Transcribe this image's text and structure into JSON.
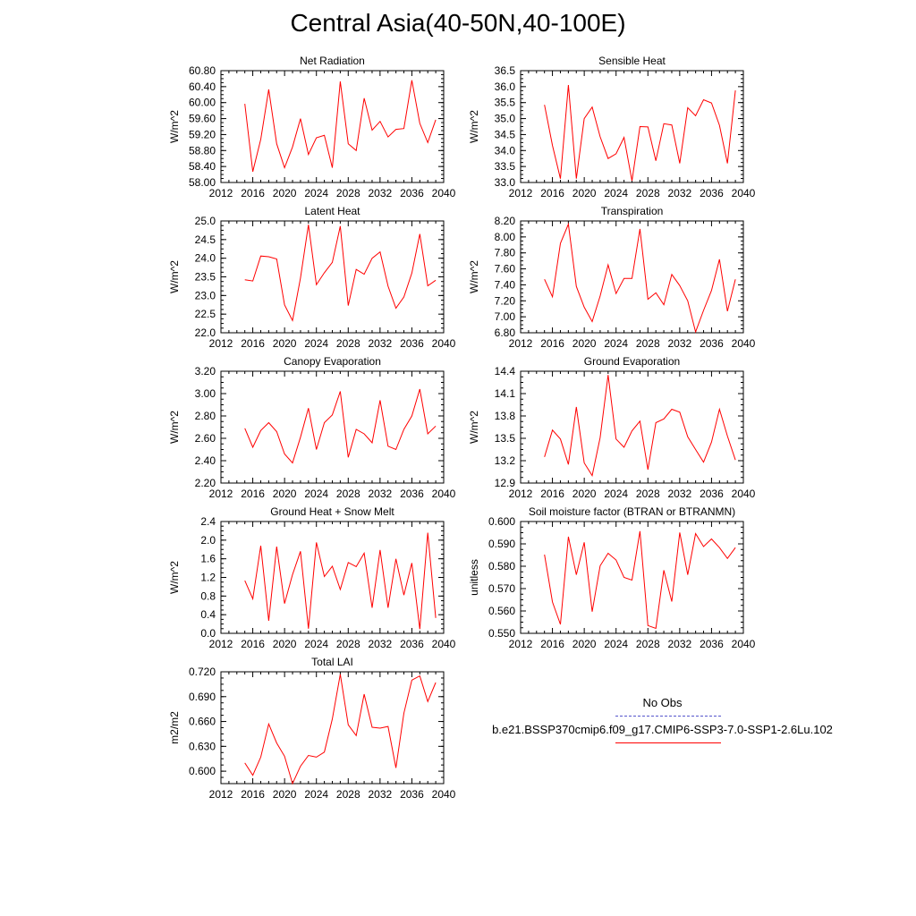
{
  "title": "Central Asia(40-50N,40-100E)",
  "legend": {
    "obs_label": "No Obs",
    "case_label": "b.e21.BSSP370cmip6.f09_g17.CMIP6-SSP3-7.0-SSP1-2.6Lu.102",
    "obs_color": "#5555cc",
    "case_color": "#ff0000"
  },
  "chart_data": [
    {
      "type": "line",
      "title": "Net Radiation",
      "ylabel": "W/m^2",
      "xlim": [
        2012,
        2040
      ],
      "ylim": [
        58.0,
        60.8
      ],
      "xticks": [
        2012,
        2016,
        2020,
        2024,
        2028,
        2032,
        2036,
        2040
      ],
      "yticks": [
        "58.00",
        "58.40",
        "58.80",
        "59.20",
        "59.60",
        "60.00",
        "60.40",
        "60.80"
      ],
      "series": [
        {
          "color": "#ff0000",
          "x": [
            2015,
            2016,
            2017,
            2018,
            2019,
            2020,
            2021,
            2022,
            2023,
            2024,
            2025,
            2026,
            2027,
            2028,
            2029,
            2030,
            2031,
            2032,
            2033,
            2034,
            2035,
            2036,
            2037,
            2038,
            2039
          ],
          "values": [
            59.97,
            58.27,
            59.08,
            60.33,
            58.97,
            58.37,
            58.89,
            59.6,
            58.7,
            59.12,
            59.18,
            58.37,
            60.53,
            58.97,
            58.8,
            60.11,
            59.31,
            59.53,
            59.14,
            59.33,
            59.35,
            60.56,
            59.48,
            59.0,
            59.57
          ]
        }
      ]
    },
    {
      "type": "line",
      "title": "Sensible Heat",
      "ylabel": "W/m^2",
      "xlim": [
        2012,
        2040
      ],
      "ylim": [
        33.0,
        36.5
      ],
      "xticks": [
        2012,
        2016,
        2020,
        2024,
        2028,
        2032,
        2036,
        2040
      ],
      "yticks": [
        "33.0",
        "33.5",
        "34.0",
        "34.5",
        "35.0",
        "35.5",
        "36.0",
        "36.5"
      ],
      "series": [
        {
          "color": "#ff0000",
          "x": [
            2015,
            2016,
            2017,
            2018,
            2019,
            2020,
            2021,
            2022,
            2023,
            2024,
            2025,
            2026,
            2027,
            2028,
            2029,
            2030,
            2031,
            2032,
            2033,
            2034,
            2035,
            2036,
            2037,
            2038,
            2039
          ],
          "values": [
            35.43,
            34.16,
            33.12,
            36.05,
            33.12,
            35.0,
            35.36,
            34.43,
            33.75,
            33.9,
            34.41,
            33.05,
            34.75,
            34.74,
            33.68,
            34.84,
            34.8,
            33.6,
            35.34,
            35.09,
            35.59,
            35.49,
            34.79,
            33.6,
            35.88
          ]
        }
      ]
    },
    {
      "type": "line",
      "title": "Latent Heat",
      "ylabel": "W/m^2",
      "xlim": [
        2012,
        2040
      ],
      "ylim": [
        22.0,
        25.0
      ],
      "xticks": [
        2012,
        2016,
        2020,
        2024,
        2028,
        2032,
        2036,
        2040
      ],
      "yticks": [
        "22.0",
        "22.5",
        "23.0",
        "23.5",
        "24.0",
        "24.5",
        "25.0"
      ],
      "series": [
        {
          "color": "#ff0000",
          "x": [
            2015,
            2016,
            2017,
            2018,
            2019,
            2020,
            2021,
            2022,
            2023,
            2024,
            2025,
            2026,
            2027,
            2028,
            2029,
            2030,
            2031,
            2032,
            2033,
            2034,
            2035,
            2036,
            2037,
            2038,
            2039
          ],
          "values": [
            23.42,
            23.39,
            24.06,
            24.04,
            23.98,
            22.75,
            22.33,
            23.47,
            24.9,
            23.29,
            23.61,
            23.89,
            24.86,
            22.73,
            23.7,
            23.57,
            24.0,
            24.17,
            23.25,
            22.66,
            22.96,
            23.6,
            24.65,
            23.26,
            23.41
          ]
        }
      ]
    },
    {
      "type": "line",
      "title": "Transpiration",
      "ylabel": "W/m^2",
      "xlim": [
        2012,
        2040
      ],
      "ylim": [
        6.8,
        8.2
      ],
      "xticks": [
        2012,
        2016,
        2020,
        2024,
        2028,
        2032,
        2036,
        2040
      ],
      "yticks": [
        "6.80",
        "7.00",
        "7.20",
        "7.40",
        "7.60",
        "7.80",
        "8.00",
        "8.20"
      ],
      "series": [
        {
          "color": "#ff0000",
          "x": [
            2015,
            2016,
            2017,
            2018,
            2019,
            2020,
            2021,
            2022,
            2023,
            2024,
            2025,
            2026,
            2027,
            2028,
            2029,
            2030,
            2031,
            2032,
            2033,
            2034,
            2035,
            2036,
            2037,
            2038,
            2039
          ],
          "values": [
            7.47,
            7.25,
            7.92,
            8.16,
            7.38,
            7.12,
            6.94,
            7.26,
            7.65,
            7.29,
            7.48,
            7.48,
            8.1,
            7.22,
            7.3,
            7.15,
            7.53,
            7.39,
            7.2,
            6.81,
            7.08,
            7.33,
            7.72,
            7.07,
            7.47
          ]
        }
      ]
    },
    {
      "type": "line",
      "title": "Canopy Evaporation",
      "ylabel": "W/m^2",
      "xlim": [
        2012,
        2040
      ],
      "ylim": [
        2.2,
        3.2
      ],
      "xticks": [
        2012,
        2016,
        2020,
        2024,
        2028,
        2032,
        2036,
        2040
      ],
      "yticks": [
        "2.20",
        "2.40",
        "2.60",
        "2.80",
        "3.00",
        "3.20"
      ],
      "series": [
        {
          "color": "#ff0000",
          "x": [
            2015,
            2016,
            2017,
            2018,
            2019,
            2020,
            2021,
            2022,
            2023,
            2024,
            2025,
            2026,
            2027,
            2028,
            2029,
            2030,
            2031,
            2032,
            2033,
            2034,
            2035,
            2036,
            2037,
            2038,
            2039
          ],
          "values": [
            2.69,
            2.52,
            2.67,
            2.74,
            2.66,
            2.46,
            2.38,
            2.61,
            2.87,
            2.5,
            2.74,
            2.81,
            3.02,
            2.43,
            2.68,
            2.64,
            2.56,
            2.94,
            2.53,
            2.5,
            2.68,
            2.8,
            3.04,
            2.64,
            2.71
          ]
        }
      ]
    },
    {
      "type": "line",
      "title": "Ground Evaporation",
      "ylabel": "W/m^2",
      "xlim": [
        2012,
        2040
      ],
      "ylim": [
        12.9,
        14.4
      ],
      "xticks": [
        2012,
        2016,
        2020,
        2024,
        2028,
        2032,
        2036,
        2040
      ],
      "yticks": [
        "12.9",
        "13.2",
        "13.5",
        "13.8",
        "14.1",
        "14.4"
      ],
      "series": [
        {
          "color": "#ff0000",
          "x": [
            2015,
            2016,
            2017,
            2018,
            2019,
            2020,
            2021,
            2022,
            2023,
            2024,
            2025,
            2026,
            2027,
            2028,
            2029,
            2030,
            2031,
            2032,
            2033,
            2034,
            2035,
            2036,
            2037,
            2038,
            2039
          ],
          "values": [
            13.25,
            13.61,
            13.49,
            13.15,
            13.92,
            13.17,
            13.0,
            13.51,
            14.35,
            13.49,
            13.38,
            13.6,
            13.73,
            13.08,
            13.71,
            13.76,
            13.89,
            13.85,
            13.52,
            13.35,
            13.18,
            13.45,
            13.89,
            13.53,
            13.21
          ]
        }
      ]
    },
    {
      "type": "line",
      "title": "Ground Heat + Snow Melt",
      "ylabel": "W/m^2",
      "xlim": [
        2012,
        2040
      ],
      "ylim": [
        0.0,
        2.4
      ],
      "xticks": [
        2012,
        2016,
        2020,
        2024,
        2028,
        2032,
        2036,
        2040
      ],
      "yticks": [
        "0.0",
        "0.4",
        "0.8",
        "1.2",
        "1.6",
        "2.0",
        "2.4"
      ],
      "series": [
        {
          "color": "#ff0000",
          "x": [
            2015,
            2016,
            2017,
            2018,
            2019,
            2020,
            2021,
            2022,
            2023,
            2024,
            2025,
            2026,
            2027,
            2028,
            2029,
            2030,
            2031,
            2032,
            2033,
            2034,
            2035,
            2036,
            2037,
            2038,
            2039
          ],
          "values": [
            1.13,
            0.74,
            1.88,
            0.27,
            1.86,
            0.64,
            1.26,
            1.76,
            0.1,
            1.95,
            1.22,
            1.44,
            0.94,
            1.52,
            1.43,
            1.72,
            0.55,
            1.79,
            0.55,
            1.6,
            0.82,
            1.51,
            0.09,
            2.16,
            0.33
          ]
        }
      ]
    },
    {
      "type": "line",
      "title": "Soil moisture factor (BTRAN or BTRANMN)",
      "ylabel": "unitless",
      "xlim": [
        2012,
        2040
      ],
      "ylim": [
        0.55,
        0.6
      ],
      "xticks": [
        2012,
        2016,
        2020,
        2024,
        2028,
        2032,
        2036,
        2040
      ],
      "yticks": [
        "0.550",
        "0.560",
        "0.570",
        "0.580",
        "0.590",
        "0.600"
      ],
      "series": [
        {
          "color": "#ff0000",
          "x": [
            2015,
            2016,
            2017,
            2018,
            2019,
            2020,
            2021,
            2022,
            2023,
            2024,
            2025,
            2026,
            2027,
            2028,
            2029,
            2030,
            2031,
            2032,
            2033,
            2034,
            2035,
            2036,
            2037,
            2038,
            2039
          ],
          "values": [
            0.5852,
            0.564,
            0.554,
            0.5932,
            0.5762,
            0.5907,
            0.5597,
            0.5802,
            0.5858,
            0.5828,
            0.575,
            0.5738,
            0.5957,
            0.5535,
            0.5522,
            0.5782,
            0.5642,
            0.5951,
            0.5762,
            0.5946,
            0.5888,
            0.5922,
            0.5883,
            0.5835,
            0.5883
          ]
        }
      ]
    },
    {
      "type": "line",
      "title": "Total LAI",
      "ylabel": "m2/m2",
      "xlim": [
        2012,
        2040
      ],
      "ylim": [
        0.585,
        0.72
      ],
      "xticks": [
        2012,
        2016,
        2020,
        2024,
        2028,
        2032,
        2036,
        2040
      ],
      "yticks": [
        "0.600",
        "0.630",
        "0.660",
        "0.690",
        "0.720"
      ],
      "series": [
        {
          "color": "#ff0000",
          "x": [
            2015,
            2016,
            2017,
            2018,
            2019,
            2020,
            2021,
            2022,
            2023,
            2024,
            2025,
            2026,
            2027,
            2028,
            2029,
            2030,
            2031,
            2032,
            2033,
            2034,
            2035,
            2036,
            2037,
            2038,
            2039
          ],
          "values": [
            0.61,
            0.595,
            0.617,
            0.657,
            0.634,
            0.618,
            0.585,
            0.606,
            0.619,
            0.617,
            0.623,
            0.663,
            0.717,
            0.656,
            0.643,
            0.693,
            0.653,
            0.652,
            0.654,
            0.604,
            0.67,
            0.71,
            0.715,
            0.684,
            0.707
          ]
        }
      ]
    }
  ]
}
